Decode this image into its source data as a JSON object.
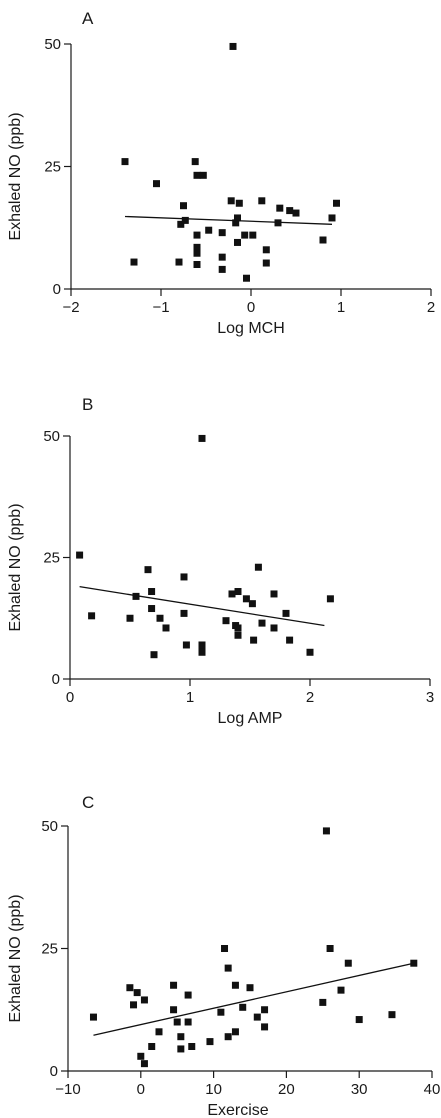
{
  "chart_data": [
    {
      "panel": "A",
      "type": "scatter",
      "title": "",
      "xlabel": "Log MCH",
      "ylabel": "Exhaled NO (ppb)",
      "xlim": [
        -2,
        2
      ],
      "ylim": [
        0,
        50
      ],
      "xticks": [
        -2,
        -1,
        0,
        1,
        2
      ],
      "yticks": [
        0,
        25,
        50
      ],
      "grid": false,
      "points": [
        {
          "x": -0.2,
          "y": 49.5
        },
        {
          "x": -1.4,
          "y": 26
        },
        {
          "x": -1.05,
          "y": 21.5
        },
        {
          "x": -0.62,
          "y": 26
        },
        {
          "x": -0.6,
          "y": 23.2
        },
        {
          "x": -0.53,
          "y": 23.2
        },
        {
          "x": -0.75,
          "y": 17
        },
        {
          "x": -0.78,
          "y": 13.2
        },
        {
          "x": -0.73,
          "y": 14
        },
        {
          "x": -0.6,
          "y": 11
        },
        {
          "x": -0.6,
          "y": 8.5
        },
        {
          "x": -0.6,
          "y": 7.3
        },
        {
          "x": -0.6,
          "y": 5
        },
        {
          "x": -0.8,
          "y": 5.5
        },
        {
          "x": -1.3,
          "y": 5.5
        },
        {
          "x": -0.47,
          "y": 12
        },
        {
          "x": -0.32,
          "y": 11.5
        },
        {
          "x": -0.32,
          "y": 6.5
        },
        {
          "x": -0.32,
          "y": 4
        },
        {
          "x": -0.22,
          "y": 18
        },
        {
          "x": -0.13,
          "y": 17.5
        },
        {
          "x": -0.15,
          "y": 14.5
        },
        {
          "x": -0.17,
          "y": 13.5
        },
        {
          "x": -0.15,
          "y": 9.5
        },
        {
          "x": -0.07,
          "y": 11
        },
        {
          "x": 0.02,
          "y": 11
        },
        {
          "x": -0.05,
          "y": 2.2
        },
        {
          "x": 0.12,
          "y": 18
        },
        {
          "x": 0.17,
          "y": 8
        },
        {
          "x": 0.17,
          "y": 5.3
        },
        {
          "x": 0.3,
          "y": 13.5
        },
        {
          "x": 0.32,
          "y": 16.5
        },
        {
          "x": 0.43,
          "y": 16
        },
        {
          "x": 0.5,
          "y": 15.5
        },
        {
          "x": 0.8,
          "y": 10
        },
        {
          "x": 0.9,
          "y": 14.5
        },
        {
          "x": 0.95,
          "y": 17.5
        }
      ],
      "trendline": {
        "x": [
          -1.4,
          0.9
        ],
        "y": [
          14.8,
          13.2
        ]
      }
    },
    {
      "panel": "B",
      "type": "scatter",
      "title": "",
      "xlabel": "Log AMP",
      "ylabel": "Exhaled NO (ppb)",
      "xlim": [
        0,
        3
      ],
      "ylim": [
        0,
        50
      ],
      "xticks": [
        0,
        1,
        2,
        3
      ],
      "yticks": [
        0,
        25,
        50
      ],
      "grid": false,
      "points": [
        {
          "x": 1.1,
          "y": 49.5
        },
        {
          "x": 0.08,
          "y": 25.5
        },
        {
          "x": 0.18,
          "y": 13
        },
        {
          "x": 0.5,
          "y": 12.5
        },
        {
          "x": 0.55,
          "y": 17
        },
        {
          "x": 0.65,
          "y": 22.5
        },
        {
          "x": 0.68,
          "y": 18
        },
        {
          "x": 0.68,
          "y": 14.5
        },
        {
          "x": 0.7,
          "y": 5
        },
        {
          "x": 0.75,
          "y": 12.5
        },
        {
          "x": 0.8,
          "y": 10.5
        },
        {
          "x": 0.95,
          "y": 21
        },
        {
          "x": 0.95,
          "y": 13.5
        },
        {
          "x": 0.97,
          "y": 7
        },
        {
          "x": 1.1,
          "y": 7
        },
        {
          "x": 1.1,
          "y": 6.5
        },
        {
          "x": 1.1,
          "y": 5.5
        },
        {
          "x": 1.3,
          "y": 12
        },
        {
          "x": 1.35,
          "y": 17.5
        },
        {
          "x": 1.38,
          "y": 11
        },
        {
          "x": 1.4,
          "y": 18
        },
        {
          "x": 1.4,
          "y": 10.5
        },
        {
          "x": 1.4,
          "y": 9
        },
        {
          "x": 1.47,
          "y": 16.5
        },
        {
          "x": 1.52,
          "y": 15.5
        },
        {
          "x": 1.53,
          "y": 8
        },
        {
          "x": 1.57,
          "y": 23
        },
        {
          "x": 1.6,
          "y": 11.5
        },
        {
          "x": 1.7,
          "y": 17.5
        },
        {
          "x": 1.7,
          "y": 10.5
        },
        {
          "x": 1.8,
          "y": 13.5
        },
        {
          "x": 1.83,
          "y": 8
        },
        {
          "x": 2.0,
          "y": 5.5
        },
        {
          "x": 2.17,
          "y": 16.5
        }
      ],
      "trendline": {
        "x": [
          0.08,
          2.12
        ],
        "y": [
          19,
          11
        ]
      }
    },
    {
      "panel": "C",
      "type": "scatter",
      "title": "",
      "xlabel": "Exercise",
      "ylabel": "Exhaled NO (ppb)",
      "xlim": [
        -10,
        40
      ],
      "ylim": [
        0,
        50
      ],
      "xticks": [
        -10,
        0,
        10,
        20,
        30,
        40
      ],
      "yticks": [
        0,
        25,
        50
      ],
      "grid": false,
      "points": [
        {
          "x": 25.5,
          "y": 49
        },
        {
          "x": -6.5,
          "y": 11
        },
        {
          "x": -1.5,
          "y": 17
        },
        {
          "x": -1,
          "y": 13.5
        },
        {
          "x": -0.5,
          "y": 16
        },
        {
          "x": 0.5,
          "y": 14.5
        },
        {
          "x": 0,
          "y": 3
        },
        {
          "x": 0.5,
          "y": 1.5
        },
        {
          "x": 1.5,
          "y": 5
        },
        {
          "x": 2.5,
          "y": 8
        },
        {
          "x": 4.5,
          "y": 17.5
        },
        {
          "x": 4.5,
          "y": 12.5
        },
        {
          "x": 5,
          "y": 10
        },
        {
          "x": 5.5,
          "y": 7
        },
        {
          "x": 5.5,
          "y": 4.5
        },
        {
          "x": 6.5,
          "y": 15.5
        },
        {
          "x": 6.5,
          "y": 10
        },
        {
          "x": 7,
          "y": 5
        },
        {
          "x": 9.5,
          "y": 6
        },
        {
          "x": 11,
          "y": 12
        },
        {
          "x": 11.5,
          "y": 25
        },
        {
          "x": 12,
          "y": 21
        },
        {
          "x": 12,
          "y": 7
        },
        {
          "x": 13,
          "y": 17.5
        },
        {
          "x": 13,
          "y": 8
        },
        {
          "x": 14,
          "y": 13
        },
        {
          "x": 15,
          "y": 17
        },
        {
          "x": 16,
          "y": 11
        },
        {
          "x": 17,
          "y": 12.5
        },
        {
          "x": 17,
          "y": 9
        },
        {
          "x": 25,
          "y": 14
        },
        {
          "x": 26,
          "y": 25
        },
        {
          "x": 27.5,
          "y": 16.5
        },
        {
          "x": 28.5,
          "y": 22
        },
        {
          "x": 30,
          "y": 10.5
        },
        {
          "x": 34.5,
          "y": 11.5
        },
        {
          "x": 37.5,
          "y": 22
        }
      ],
      "trendline": {
        "x": [
          -6.5,
          37.5
        ],
        "y": [
          7.3,
          22
        ]
      }
    }
  ]
}
